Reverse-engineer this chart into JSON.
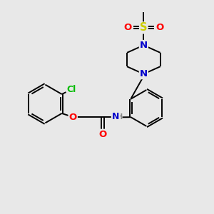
{
  "bg_color": "#e8e8e8",
  "atom_colors": {
    "C": "#000000",
    "N": "#0000cc",
    "O": "#ff0000",
    "S": "#cccc00",
    "Cl": "#00bb00",
    "H": "#888888"
  },
  "bond_color": "#000000",
  "figsize": [
    3.0,
    3.0
  ],
  "dpi": 100,
  "xlim": [
    0,
    10
  ],
  "ylim": [
    0,
    10
  ]
}
